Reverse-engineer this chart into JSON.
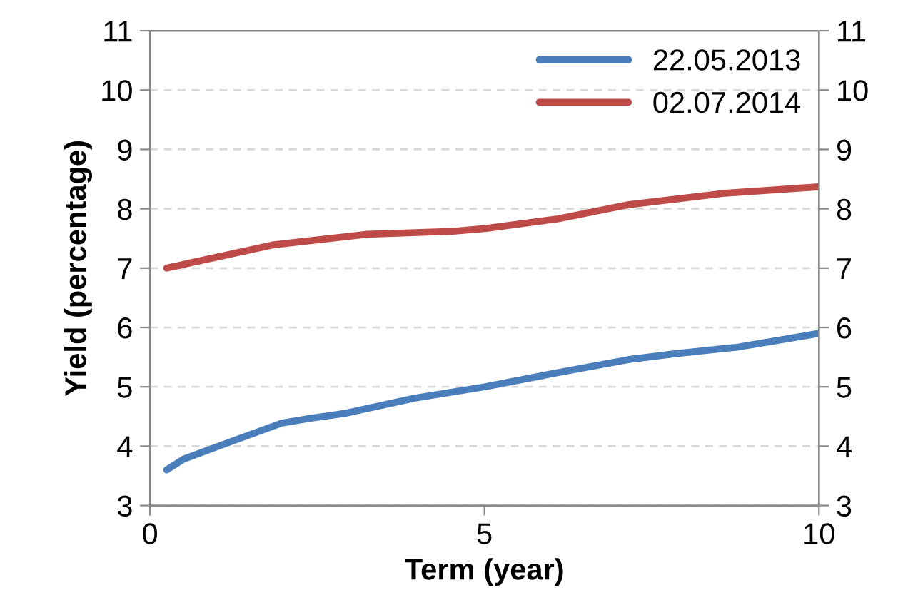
{
  "chart_data": {
    "type": "line",
    "xlabel": "Term (year)",
    "ylabel": "Yield (percentage)",
    "xlim": [
      0,
      10
    ],
    "xticks": [
      0,
      5,
      10
    ],
    "ylim": [
      3,
      11
    ],
    "yticks": [
      3,
      4,
      5,
      6,
      7,
      8,
      9,
      10,
      11
    ],
    "y2lim": [
      3,
      11
    ],
    "y2ticks": [
      3,
      4,
      5,
      6,
      7,
      8,
      9,
      10,
      11
    ],
    "grid": "y",
    "legend": "top right",
    "marker": "none",
    "line_style": "solid",
    "series": [
      {
        "name": "22.05.2013",
        "color": "#4a7ebb",
        "x": [
          0.25,
          0.5,
          1.05,
          1.97,
          2.4,
          2.9,
          3.96,
          5,
          6.1,
          7.16,
          7.87,
          8.79,
          10
        ],
        "values": [
          3.6,
          3.78,
          4.01,
          4.39,
          4.47,
          4.55,
          4.81,
          5.0,
          5.24,
          5.46,
          5.56,
          5.67,
          5.9
        ]
      },
      {
        "name": "02.07.2014",
        "color": "#be4b48",
        "x": [
          0.25,
          1.83,
          3.25,
          4.53,
          5.03,
          6.1,
          7.16,
          8.58,
          10
        ],
        "values": [
          7.0,
          7.39,
          7.57,
          7.62,
          7.67,
          7.83,
          8.07,
          8.26,
          8.37
        ]
      }
    ]
  }
}
